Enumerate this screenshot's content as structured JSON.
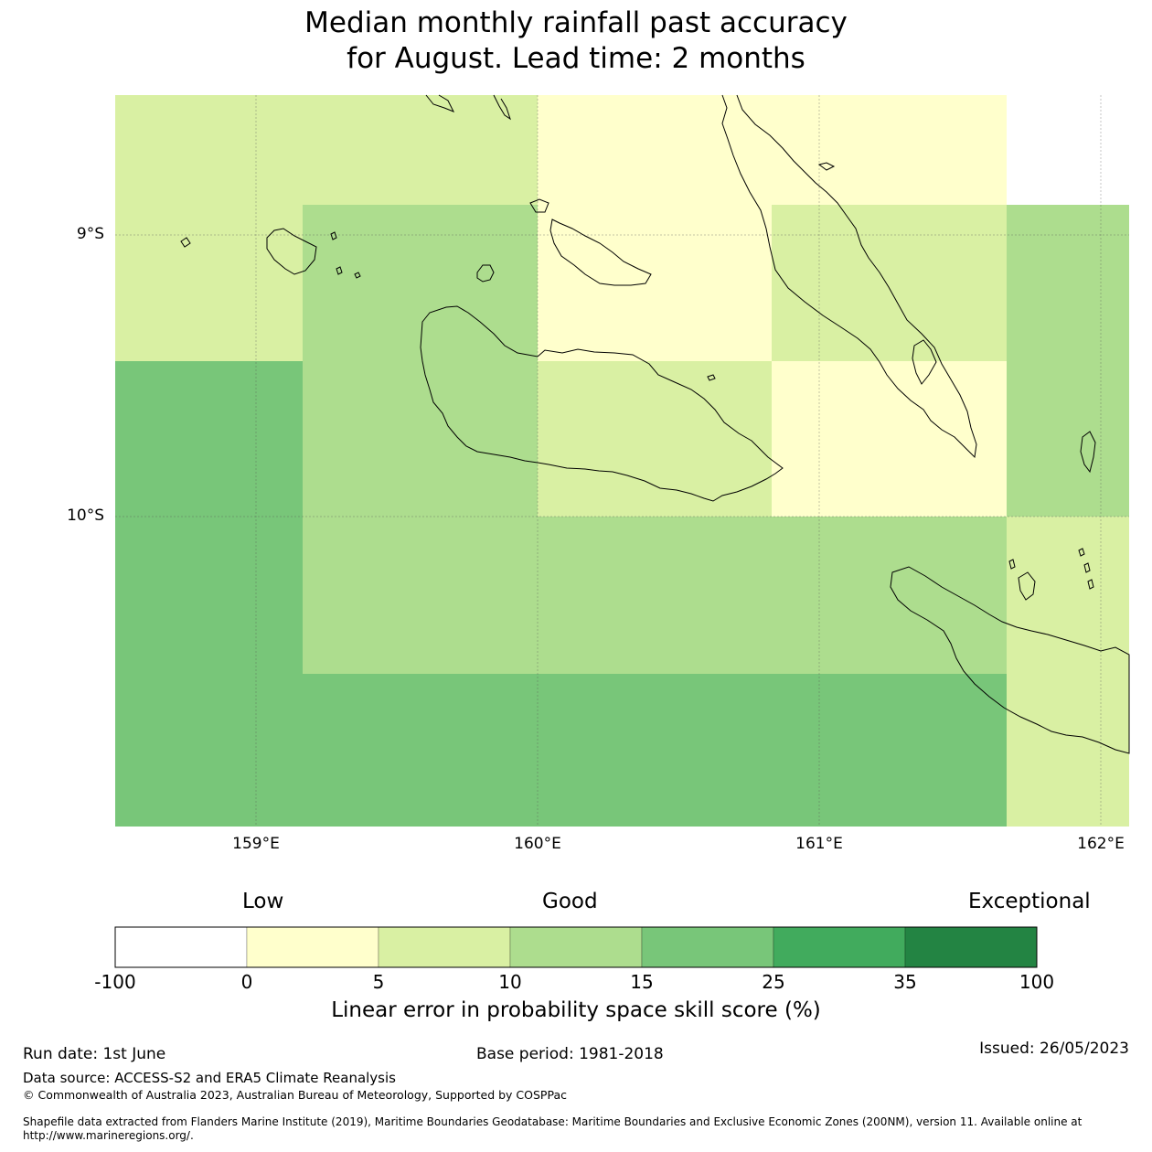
{
  "title": {
    "line1": "Median monthly rainfall past accuracy",
    "line2": "for August. Lead time: 2 months"
  },
  "map": {
    "lat_labels": [
      "9°S",
      "10°S"
    ],
    "lon_labels": [
      "159°E",
      "160°E",
      "161°E",
      "162°E"
    ],
    "lon_range": [
      158.5,
      162.1
    ],
    "lat_range": [
      -11.1,
      -8.5
    ],
    "gridlines": true,
    "coastline_color": "#000000"
  },
  "legend": {
    "category_labels": [
      "Low",
      "Good",
      "Exceptional"
    ],
    "ticks": [
      "-100",
      "0",
      "5",
      "10",
      "15",
      "25",
      "35",
      "100"
    ],
    "colors": [
      "#ffffff",
      "#ffffcc",
      "#d9f0a3",
      "#addd8e",
      "#78c679",
      "#41ab5d",
      "#238443"
    ],
    "title": "Linear error in probability space skill score (%)"
  },
  "footer": {
    "run_date": "Run date: 1st June",
    "base_period": "Base period: 1981-2018",
    "issued": "Issued: 26/05/2023",
    "data_source": "Data source: ACCESS-S2 and ERA5 Climate Reanalysis",
    "copyright": "© Commonwealth of Australia 2023, Australian Bureau of Meteorology, Supported by COSPPac",
    "shapefile_note": "Shapefile data extracted from Flanders Marine Institute (2019), Maritime Boundaries Geodatabase: Maritime Boundaries and Exclusive Economic Zones (200NM), version 11. Available online at http://www.marineregions.org/."
  }
}
